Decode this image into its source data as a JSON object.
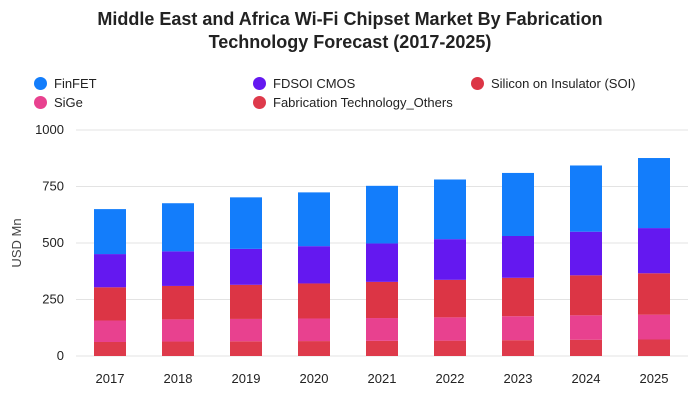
{
  "chart_data": {
    "type": "bar",
    "stacked": true,
    "title_lines": [
      "Middle East and Africa Wi-Fi Chipset Market By Fabrication",
      "Technology Forecast (2017-2025)"
    ],
    "xlabel": "",
    "ylabel": "USD Mn",
    "ylim": [
      0,
      1000
    ],
    "yticks": [
      "0",
      "250",
      "500",
      "750",
      "1000"
    ],
    "grid": true,
    "legend_position": "top",
    "categories": [
      "2017",
      "2018",
      "2019",
      "2020",
      "2021",
      "2022",
      "2023",
      "2024",
      "2025"
    ],
    "series": [
      {
        "name": "Fabrication Technology_Others",
        "color": "#de3a4b",
        "values": [
          62,
          64,
          65,
          66,
          67,
          68,
          70,
          72,
          73
        ]
      },
      {
        "name": "SiGe",
        "color": "#e8418f",
        "values": [
          95,
          98,
          99,
          100,
          101,
          103,
          106,
          108,
          110
        ]
      },
      {
        "name": "Silicon on Insulator (SOI)",
        "color": "#dc3545",
        "values": [
          147,
          148,
          151,
          155,
          160,
          166,
          170,
          177,
          183
        ]
      },
      {
        "name": "FDSOI CMOS",
        "color": "#6418f0",
        "values": [
          147,
          153,
          159,
          165,
          170,
          180,
          185,
          193,
          200
        ]
      },
      {
        "name": "FinFET",
        "color": "#137dfb",
        "values": [
          199,
          213,
          228,
          238,
          255,
          264,
          279,
          293,
          310
        ]
      }
    ]
  },
  "legend": [
    {
      "label": "FinFET",
      "color": "#137dfb"
    },
    {
      "label": "FDSOI CMOS",
      "color": "#6418f0"
    },
    {
      "label": "Silicon on Insulator (SOI)",
      "color": "#dc3545"
    },
    {
      "label": "SiGe",
      "color": "#e8418f"
    },
    {
      "label": "Fabrication Technology_Others",
      "color": "#de3a4b"
    }
  ]
}
